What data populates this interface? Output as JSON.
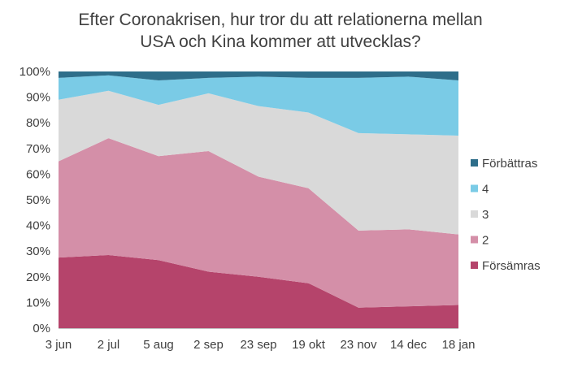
{
  "chart_data": {
    "type": "area",
    "stacked": true,
    "title_lines": [
      "Efter Coronakrisen, hur tror du att relationerna mellan",
      "USA och Kina kommer att utvecklas?"
    ],
    "categories": [
      "3 jun",
      "2 jul",
      "5 aug",
      "2 sep",
      "23 sep",
      "19 okt",
      "23 nov",
      "14 dec",
      "18 jan"
    ],
    "y_ticks": [
      "0%",
      "10%",
      "20%",
      "30%",
      "40%",
      "50%",
      "60%",
      "70%",
      "80%",
      "90%",
      "100%"
    ],
    "ylim": [
      0,
      100
    ],
    "grid": false,
    "legend_position": "right",
    "series": [
      {
        "name": "Försämras",
        "color": "#B5446B",
        "values": [
          27.5,
          28.5,
          26.5,
          22,
          20,
          17.5,
          8,
          8.5,
          9
        ]
      },
      {
        "name": "2",
        "color": "#D48FA8",
        "values": [
          37.5,
          45.5,
          40.5,
          47,
          39,
          37,
          30,
          30,
          27.5
        ]
      },
      {
        "name": "3",
        "color": "#D9D9D9",
        "values": [
          24,
          18.5,
          20,
          22.5,
          27.5,
          29.5,
          38,
          37,
          38.5
        ]
      },
      {
        "name": "4",
        "color": "#7ACBE6",
        "values": [
          8.5,
          6,
          9.5,
          6,
          11.5,
          13.5,
          21.5,
          22.5,
          21.5
        ]
      },
      {
        "name": "Förbättras",
        "color": "#2E6E8A",
        "values": [
          2.5,
          1.5,
          3.5,
          2.5,
          2,
          2.5,
          2.5,
          2,
          3.5
        ]
      }
    ]
  }
}
